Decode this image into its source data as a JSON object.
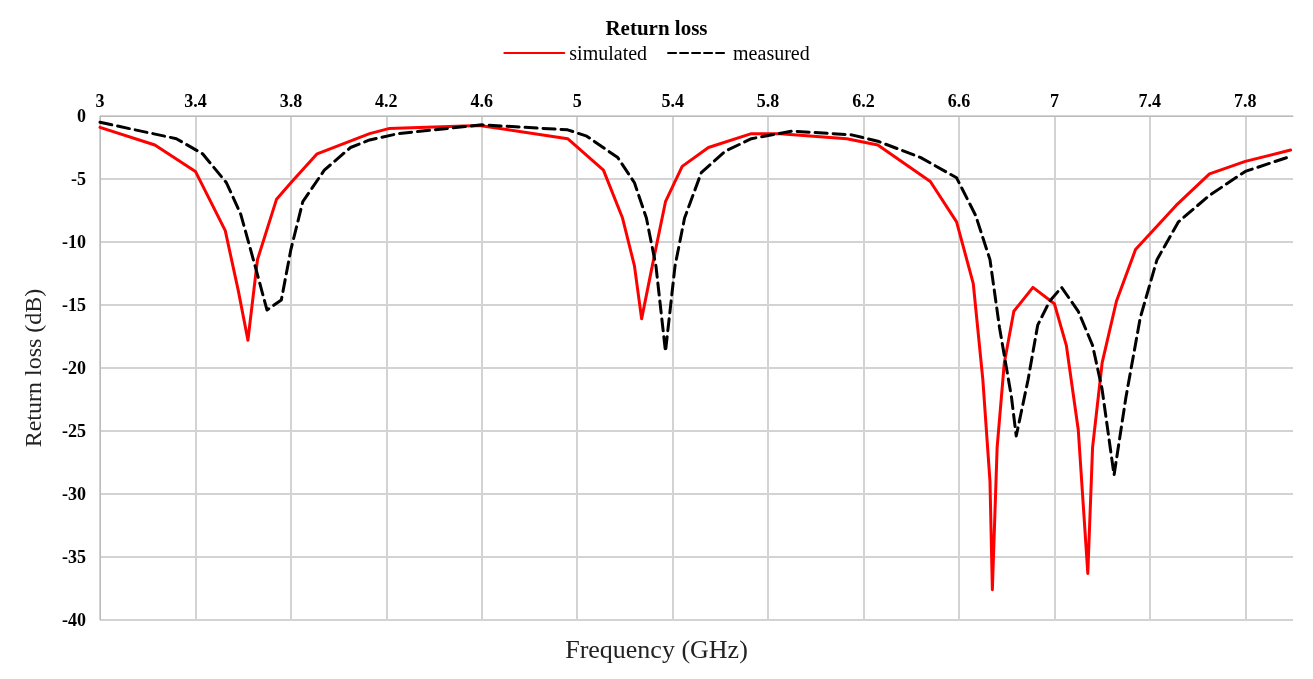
{
  "chart_data": {
    "type": "line",
    "title": "Return loss",
    "xlabel": "Frequency (GHz)",
    "ylabel": "Return loss (dB)",
    "xlim": [
      3,
      8
    ],
    "xticks": [
      3,
      3.4,
      3.8,
      4.2,
      4.6,
      5,
      5.4,
      5.8,
      6.2,
      6.6,
      7,
      7.4,
      7.8
    ],
    "ylim": [
      -40,
      0
    ],
    "yticks": [
      -40,
      -35,
      -30,
      -25,
      -20,
      -15,
      -10,
      -5,
      0
    ],
    "grid": true,
    "legend": "top",
    "marker": "none",
    "series": [
      {
        "name": "simulated",
        "color": "#ff0000",
        "line_style": "solid",
        "x": [
          3.0,
          3.23,
          3.4,
          3.525,
          3.58,
          3.62,
          3.66,
          3.74,
          3.8,
          3.91,
          4.13,
          4.21,
          4.59,
          4.96,
          5.11,
          5.19,
          5.24,
          5.27,
          5.32,
          5.37,
          5.44,
          5.55,
          5.73,
          5.85,
          6.13,
          6.26,
          6.48,
          6.59,
          6.66,
          6.7,
          6.73,
          6.74,
          6.76,
          6.79,
          6.83,
          6.91,
          7.0,
          7.05,
          7.1,
          7.14,
          7.16,
          7.2,
          7.26,
          7.34,
          7.51,
          7.65,
          7.8,
          7.99
        ],
        "values": [
          -0.9,
          -2.3,
          -4.4,
          -9.1,
          -13.9,
          -17.8,
          -11.4,
          -6.6,
          -5.3,
          -3.0,
          -1.4,
          -1.0,
          -0.75,
          -1.8,
          -4.3,
          -8.1,
          -11.9,
          -16.1,
          -11.4,
          -6.8,
          -4.0,
          -2.5,
          -1.4,
          -1.4,
          -1.8,
          -2.3,
          -5.2,
          -8.4,
          -13.3,
          -20.9,
          -29,
          -37.6,
          -26.3,
          -19.6,
          -15.5,
          -13.6,
          -14.9,
          -18.2,
          -24.9,
          -36.3,
          -26.3,
          -19.6,
          -14.7,
          -10.6,
          -7.1,
          -4.6,
          -3.6,
          -2.7
        ]
      },
      {
        "name": "measured",
        "color": "#000000",
        "line_style": "dashed",
        "x": [
          3.0,
          3.32,
          3.43,
          3.53,
          3.59,
          3.65,
          3.7,
          3.76,
          3.8,
          3.85,
          3.94,
          4.05,
          4.13,
          4.25,
          4.6,
          4.96,
          5.04,
          5.17,
          5.24,
          5.29,
          5.33,
          5.37,
          5.41,
          5.45,
          5.52,
          5.62,
          5.73,
          5.9,
          6.15,
          6.26,
          6.44,
          6.59,
          6.67,
          6.73,
          6.77,
          6.82,
          6.84,
          6.89,
          6.93,
          6.98,
          7.03,
          7.1,
          7.16,
          7.2,
          7.25,
          7.3,
          7.36,
          7.43,
          7.52,
          7.65,
          7.8,
          7.99
        ],
        "values": [
          -0.5,
          -1.8,
          -3.0,
          -5.3,
          -7.8,
          -11.9,
          -15.4,
          -14.6,
          -10.6,
          -6.8,
          -4.3,
          -2.5,
          -1.9,
          -1.4,
          -0.7,
          -1.1,
          -1.6,
          -3.3,
          -5.3,
          -8.1,
          -11.9,
          -18.7,
          -11.9,
          -8.1,
          -4.5,
          -2.8,
          -1.8,
          -1.2,
          -1.5,
          -2.0,
          -3.3,
          -4.9,
          -7.9,
          -11.4,
          -16.8,
          -22.3,
          -25.4,
          -20.9,
          -16.6,
          -14.7,
          -13.6,
          -15.5,
          -18.2,
          -21.7,
          -28.5,
          -22.3,
          -16.0,
          -11.4,
          -8.4,
          -6.3,
          -4.4,
          -3.2
        ]
      }
    ]
  }
}
